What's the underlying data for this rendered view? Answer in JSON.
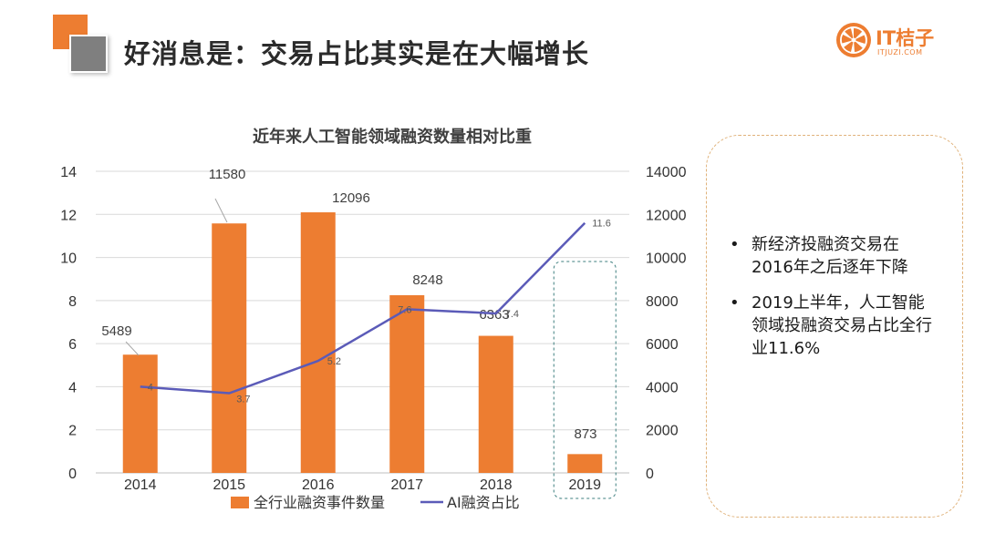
{
  "page": {
    "title": "好消息是：交易占比其实是在大幅增长"
  },
  "brand": {
    "name": "IT桔子",
    "url": "ITJUZI.COM",
    "icon": "orange-slice-icon",
    "color": "#ed7d31"
  },
  "notes": [
    "新经济投融资交易在2016年之后逐年下降",
    "2019上半年，人工智能领域投融资交易占比全行业11.6%"
  ],
  "chart_data": {
    "type": "bar",
    "title": "近年来人工智能领域融资数量相对比重",
    "categories": [
      "2014",
      "2015",
      "2016",
      "2017",
      "2018",
      "2019"
    ],
    "series": [
      {
        "name": "全行业融资事件数量",
        "type": "bar",
        "axis": "right",
        "color": "#ed7d31",
        "values": [
          5489,
          11580,
          12096,
          8248,
          6363,
          873
        ],
        "labels": [
          "5489",
          "11580",
          "12096",
          "8248",
          "6363",
          "873"
        ]
      },
      {
        "name": "AI融资占比",
        "type": "line",
        "axis": "left",
        "color": "#5b5bb8",
        "values": [
          4,
          3.7,
          5.2,
          7.6,
          7.4,
          11.6
        ],
        "labels": [
          "4",
          "3.7",
          "5.2",
          "7.6",
          "7.4",
          "11.6"
        ]
      }
    ],
    "left_axis": {
      "min": 0,
      "max": 14,
      "ticks": [
        "0",
        "2",
        "4",
        "6",
        "8",
        "10",
        "12",
        "14"
      ]
    },
    "right_axis": {
      "min": 0,
      "max": 14000,
      "ticks": [
        "0",
        "2000",
        "4000",
        "6000",
        "8000",
        "10000",
        "12000",
        "14000"
      ]
    },
    "grid": true,
    "legend": "bottom",
    "highlight_category": "2019"
  }
}
